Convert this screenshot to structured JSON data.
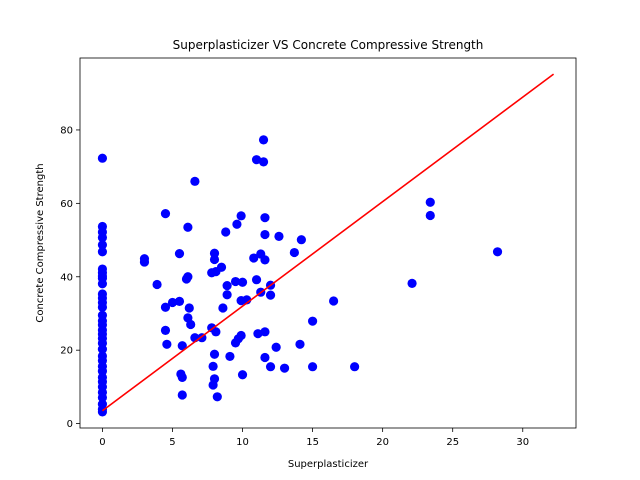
{
  "chart_data": {
    "type": "scatter",
    "title": "Superplasticizer VS Concrete Compressive Strength",
    "xlabel": "Superplasticizer",
    "ylabel": "Concrete Compressive Strength",
    "xlim": [
      -1.6,
      33.8
    ],
    "ylim": [
      -1.2,
      99.6
    ],
    "xticks": [
      0,
      5,
      10,
      15,
      20,
      25,
      30
    ],
    "yticks": [
      0,
      20,
      40,
      60,
      80
    ],
    "grid": false,
    "legend": "none",
    "colors": {
      "points": "#0000ff",
      "line": "#ff0000",
      "axes": "#000000"
    },
    "series": [
      {
        "kind": "points",
        "points": [
          [
            0,
            72.3
          ],
          [
            0,
            53.7
          ],
          [
            0,
            52.2
          ],
          [
            0,
            50.7
          ],
          [
            0,
            48.7
          ],
          [
            0,
            46.8
          ],
          [
            0,
            42.1
          ],
          [
            0,
            41.1
          ],
          [
            0,
            40.2
          ],
          [
            0,
            39.6
          ],
          [
            0,
            38.1
          ],
          [
            0,
            35.3
          ],
          [
            0,
            34.2
          ],
          [
            0,
            33.0
          ],
          [
            0,
            31.7
          ],
          [
            0,
            29.5
          ],
          [
            0,
            28.0
          ],
          [
            0,
            26.9
          ],
          [
            0,
            25.5
          ],
          [
            0,
            24.4
          ],
          [
            0,
            23.2
          ],
          [
            0,
            21.9
          ],
          [
            0,
            20.3
          ],
          [
            0,
            18.4
          ],
          [
            0,
            17.2
          ],
          [
            0,
            15.6
          ],
          [
            0,
            14.3
          ],
          [
            0,
            12.6
          ],
          [
            0,
            11.4
          ],
          [
            0,
            10.0
          ],
          [
            0,
            8.5
          ],
          [
            0,
            7.1
          ],
          [
            0,
            5.3
          ],
          [
            0,
            3.9
          ],
          [
            0,
            3.2
          ],
          [
            3.0,
            44.9
          ],
          [
            3.0,
            44.0
          ],
          [
            3.9,
            37.9
          ],
          [
            4.5,
            57.2
          ],
          [
            4.5,
            31.7
          ],
          [
            4.5,
            25.4
          ],
          [
            4.6,
            21.6
          ],
          [
            5.0,
            33.0
          ],
          [
            5.5,
            46.3
          ],
          [
            5.5,
            33.3
          ],
          [
            5.6,
            13.5
          ],
          [
            5.7,
            12.6
          ],
          [
            5.7,
            21.2
          ],
          [
            5.7,
            7.8
          ],
          [
            6.0,
            39.4
          ],
          [
            6.1,
            40.0
          ],
          [
            6.1,
            53.5
          ],
          [
            6.1,
            28.8
          ],
          [
            6.2,
            31.5
          ],
          [
            6.3,
            27.0
          ],
          [
            6.6,
            66.0
          ],
          [
            6.6,
            23.4
          ],
          [
            7.1,
            23.4
          ],
          [
            7.8,
            26.1
          ],
          [
            7.8,
            41.1
          ],
          [
            7.9,
            15.6
          ],
          [
            7.9,
            10.5
          ],
          [
            8.0,
            12.2
          ],
          [
            8.0,
            18.9
          ],
          [
            8.0,
            46.4
          ],
          [
            8.0,
            44.7
          ],
          [
            8.1,
            41.4
          ],
          [
            8.1,
            25.0
          ],
          [
            8.2,
            7.3
          ],
          [
            8.5,
            42.6
          ],
          [
            8.6,
            31.5
          ],
          [
            8.8,
            52.2
          ],
          [
            8.9,
            35.1
          ],
          [
            8.9,
            37.6
          ],
          [
            9.1,
            18.3
          ],
          [
            9.5,
            22.0
          ],
          [
            9.5,
            38.7
          ],
          [
            9.6,
            54.3
          ],
          [
            9.7,
            23.1
          ],
          [
            9.9,
            56.6
          ],
          [
            9.9,
            33.5
          ],
          [
            9.9,
            24.0
          ],
          [
            10.0,
            13.3
          ],
          [
            10.0,
            38.5
          ],
          [
            10.3,
            33.7
          ],
          [
            10.8,
            45.1
          ],
          [
            11.0,
            71.9
          ],
          [
            11.0,
            39.2
          ],
          [
            11.1,
            24.5
          ],
          [
            11.3,
            46.2
          ],
          [
            11.3,
            35.8
          ],
          [
            11.5,
            77.3
          ],
          [
            11.5,
            71.3
          ],
          [
            11.6,
            56.1
          ],
          [
            11.6,
            51.5
          ],
          [
            11.6,
            44.6
          ],
          [
            11.6,
            25.0
          ],
          [
            11.6,
            18.0
          ],
          [
            12.0,
            37.7
          ],
          [
            12.0,
            35.0
          ],
          [
            12.0,
            15.5
          ],
          [
            12.4,
            20.8
          ],
          [
            12.6,
            51.0
          ],
          [
            13.0,
            15.1
          ],
          [
            13.7,
            46.6
          ],
          [
            14.2,
            50.1
          ],
          [
            14.1,
            21.6
          ],
          [
            15.0,
            27.9
          ],
          [
            15.0,
            15.5
          ],
          [
            16.5,
            33.4
          ],
          [
            18.0,
            15.5
          ],
          [
            22.1,
            38.2
          ],
          [
            23.4,
            60.3
          ],
          [
            23.4,
            56.7
          ],
          [
            28.2,
            46.8
          ]
        ]
      },
      {
        "kind": "trend-line",
        "start": [
          0,
          3.5
        ],
        "end": [
          32.2,
          95.2
        ]
      }
    ]
  }
}
